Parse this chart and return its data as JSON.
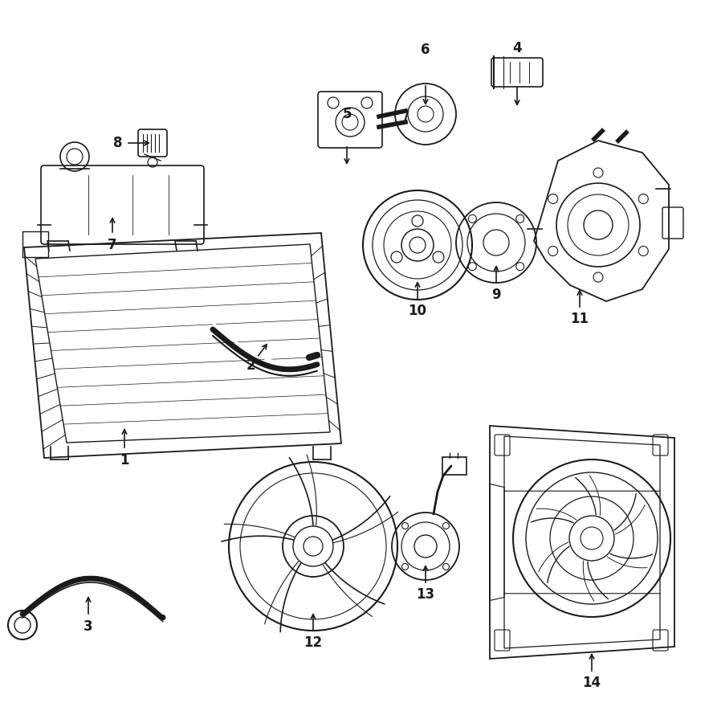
{
  "background_color": "#ffffff",
  "line_color": "#1a1a1a",
  "fig_width": 8.88,
  "fig_height": 9.0,
  "dpi": 100
}
